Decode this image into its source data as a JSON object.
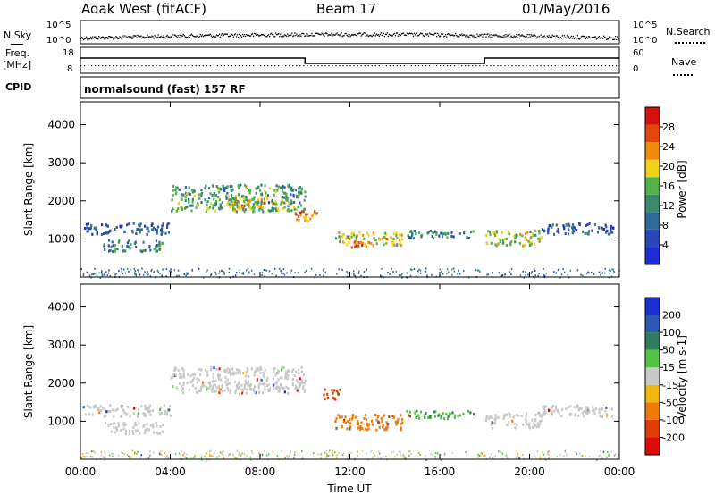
{
  "header": {
    "station": "Adak West (fitACF)",
    "beam": "Beam 17",
    "date": "01/May/2016"
  },
  "top_panels": {
    "nsky_label": "N.Sky",
    "nsearch_label": "N.Search",
    "freq_label_top": "Freq.",
    "freq_label_unit": "[MHz]",
    "cpid_label": "CPID",
    "nave_label": "Nave",
    "cpid_text": "normalsound (fast) 157 RF",
    "noise_ticks": [
      "10^5",
      "10^0"
    ],
    "freq_ticks": [
      "18",
      "8"
    ],
    "nave_ticks": [
      "60",
      "0"
    ]
  },
  "colors": {
    "power_scale": [
      "#1f2bd4",
      "#2a46b8",
      "#2e6a9a",
      "#3b8a6e",
      "#52b248",
      "#f0d21a",
      "#f08a0a",
      "#e2480a",
      "#d81010"
    ],
    "velocity_scale": [
      "#1a2fd0",
      "#2c59b0",
      "#2f7c5e",
      "#54c242",
      "#c8c8c8",
      "#f2b60e",
      "#f07a08",
      "#e03c08",
      "#e00a0a"
    ]
  },
  "chart_data": [
    {
      "type": "heatmap",
      "name": "power",
      "ylabel": "Slant Range [km]",
      "ylim": [
        0,
        4600
      ],
      "yticks": [
        "1000",
        "2000",
        "3000",
        "4000"
      ],
      "colorbar_label": "Power [dB]",
      "colorbar_ticks": [
        "4",
        "8",
        "12",
        "16",
        "20",
        "24",
        "28"
      ],
      "colorbar_range": [
        0,
        32
      ],
      "bands": [
        {
          "t0": 0.0,
          "t1": 4.0,
          "r0": 1150,
          "r1": 1450,
          "v": 6
        },
        {
          "t0": 1.0,
          "t1": 3.7,
          "r0": 700,
          "r1": 1000,
          "v": 10
        },
        {
          "t0": 4.0,
          "t1": 10.0,
          "r0": 1750,
          "r1": 2450,
          "v": 13
        },
        {
          "t0": 6.5,
          "t1": 9.5,
          "r0": 1800,
          "r1": 2100,
          "v": 19
        },
        {
          "t0": 9.5,
          "t1": 10.5,
          "r0": 1500,
          "r1": 1800,
          "v": 24
        },
        {
          "t0": 11.3,
          "t1": 14.3,
          "r0": 850,
          "r1": 1200,
          "v": 20
        },
        {
          "t0": 12.0,
          "t1": 13.0,
          "r0": 800,
          "r1": 950,
          "v": 27
        },
        {
          "t0": 14.5,
          "t1": 17.5,
          "r0": 1050,
          "r1": 1250,
          "v": 11
        },
        {
          "t0": 18.0,
          "t1": 20.5,
          "r0": 850,
          "r1": 1250,
          "v": 18
        },
        {
          "t0": 20.5,
          "t1": 23.8,
          "r0": 1150,
          "r1": 1450,
          "v": 6
        }
      ]
    },
    {
      "type": "heatmap",
      "name": "velocity",
      "ylabel": "Slant Range [km]",
      "ylim": [
        0,
        4600
      ],
      "yticks": [
        "1000",
        "2000",
        "3000",
        "4000"
      ],
      "colorbar_label": "Velocity [m s-1]",
      "colorbar_ticks": [
        "200",
        "100",
        "50",
        "15",
        "-15",
        "-50",
        "-100",
        "-200"
      ],
      "bands": [
        {
          "t0": 0.0,
          "t1": 4.0,
          "r0": 1150,
          "r1": 1450,
          "v": 0
        },
        {
          "t0": 1.0,
          "t1": 3.7,
          "r0": 700,
          "r1": 1000,
          "v": 0
        },
        {
          "t0": 4.0,
          "t1": 10.0,
          "r0": 1750,
          "r1": 2450,
          "v": 0
        },
        {
          "t0": 10.8,
          "t1": 11.6,
          "r0": 1600,
          "r1": 1900,
          "v": -120
        },
        {
          "t0": 11.3,
          "t1": 14.3,
          "r0": 800,
          "r1": 1200,
          "v": -45
        },
        {
          "t0": 14.5,
          "t1": 17.5,
          "r0": 1100,
          "r1": 1300,
          "v": 30
        },
        {
          "t0": 18.0,
          "t1": 20.5,
          "r0": 850,
          "r1": 1250,
          "v": 0
        },
        {
          "t0": 20.5,
          "t1": 23.8,
          "r0": 1150,
          "r1": 1450,
          "v": 0
        }
      ]
    }
  ],
  "time_axis": {
    "label": "Time UT",
    "ticks": [
      "00:00",
      "04:00",
      "08:00",
      "12:00",
      "16:00",
      "20:00",
      "00:00"
    ],
    "range_hours": [
      0,
      24
    ]
  },
  "noise_series": {
    "segments_hours": [
      0,
      24
    ],
    "level": 0.35
  },
  "freq_series": {
    "segments": [
      {
        "t0": 0,
        "t1": 10,
        "v": 14
      },
      {
        "t0": 10,
        "t1": 18,
        "v": 11
      },
      {
        "t0": 18,
        "t1": 24,
        "v": 14
      }
    ],
    "nave": 11
  }
}
